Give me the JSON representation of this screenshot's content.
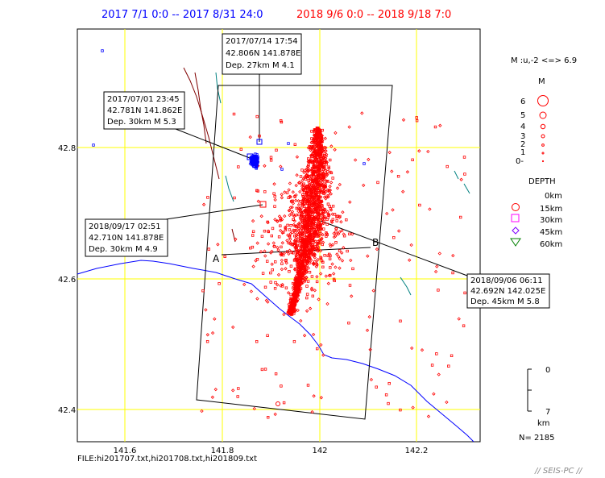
{
  "header": {
    "period_blue": "2017 7/1 0:0 -- 2017 8/31 24:0",
    "period_red": "2018 9/6 0:0 -- 2018 9/18 7:0"
  },
  "colors": {
    "blue": "#0000ff",
    "red": "#ff0000",
    "grid": "#ffff00",
    "coast": "#0000ff",
    "fault": "#800000",
    "river": "#008080"
  },
  "axes": {
    "lat_ticks": [
      "42.8",
      "42.6",
      "42.4"
    ],
    "lon_ticks": [
      "141.6",
      "141.8",
      "142",
      "142.2"
    ]
  },
  "callouts": [
    {
      "line1": "2017/07/14 17:54",
      "line2": "42.806N  141.878E",
      "line3": "Dep. 27km    M 4.1"
    },
    {
      "line1": "2017/07/01 23:45",
      "line2": "42.781N  141.862E",
      "line3": "Dep. 30km    M 5.3"
    },
    {
      "line1": "2018/09/17 02:51",
      "line2": "42.710N  141.878E",
      "line3": "Dep. 30km    M 4.9"
    },
    {
      "line1": "2018/09/06 06:11",
      "line2": "42.692N  142.025E",
      "line3": "Dep. 45km    M 5.8"
    }
  ],
  "section": {
    "label_a": "A",
    "label_b": "B"
  },
  "legend": {
    "mag_range": "M :u,-2 <=> 6.9",
    "mag_title": "M",
    "mag_labels": [
      "6",
      "5",
      "4",
      "3",
      "2",
      "1",
      "0-"
    ],
    "depth_title": "DEPTH",
    "depth_labels": [
      "0km",
      "15km",
      "30km",
      "45km",
      "60km"
    ],
    "scale_top": "0",
    "scale_bottom": "7",
    "scale_unit": "km",
    "count": "N= 2185"
  },
  "footer": {
    "files": "FILE:hi201707.txt,hi201708.txt,hi201809.txt",
    "brand": "// SEIS-PC //"
  }
}
